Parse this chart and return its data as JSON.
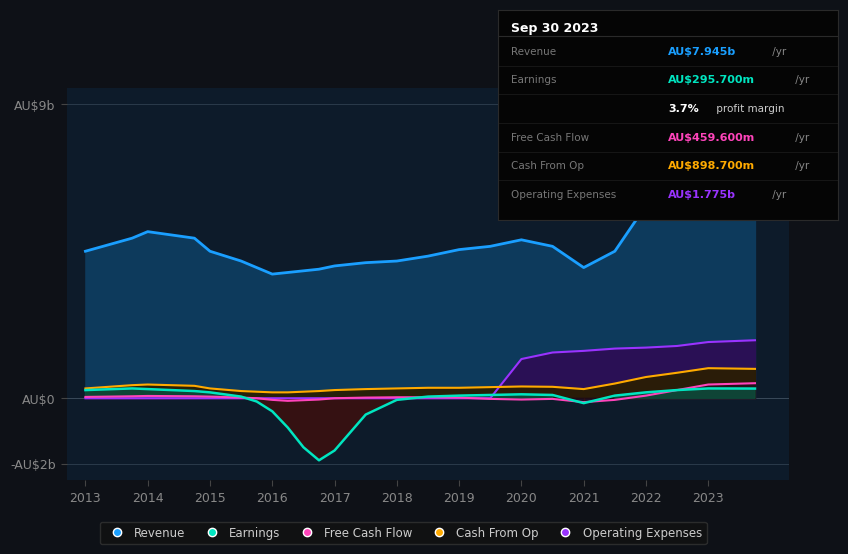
{
  "bg_color": "#0e1117",
  "plot_bg_color": "#0d1b2a",
  "years": [
    2013,
    2013.75,
    2014,
    2014.75,
    2015,
    2015.5,
    2015.75,
    2016,
    2016.25,
    2016.5,
    2016.75,
    2017,
    2017.5,
    2018,
    2018.5,
    2019,
    2019.5,
    2020,
    2020.5,
    2021,
    2021.5,
    2022,
    2022.5,
    2023,
    2023.75
  ],
  "revenue": [
    4.5,
    4.9,
    5.1,
    4.9,
    4.5,
    4.2,
    4.0,
    3.8,
    3.85,
    3.9,
    3.95,
    4.05,
    4.15,
    4.2,
    4.35,
    4.55,
    4.65,
    4.85,
    4.65,
    4.0,
    4.5,
    5.9,
    7.1,
    8.5,
    7.95
  ],
  "earnings": [
    0.25,
    0.3,
    0.28,
    0.22,
    0.18,
    0.05,
    -0.1,
    -0.4,
    -0.9,
    -1.5,
    -1.9,
    -1.6,
    -0.5,
    -0.05,
    0.05,
    0.08,
    0.1,
    0.12,
    0.1,
    -0.15,
    0.08,
    0.18,
    0.25,
    0.3,
    0.296
  ],
  "free_cash_flow": [
    0.04,
    0.06,
    0.07,
    0.06,
    0.05,
    0.02,
    0.0,
    -0.05,
    -0.08,
    -0.06,
    -0.04,
    0.0,
    0.02,
    0.03,
    0.03,
    0.02,
    -0.02,
    -0.04,
    -0.02,
    -0.12,
    -0.05,
    0.08,
    0.25,
    0.42,
    0.46
  ],
  "cash_from_op": [
    0.3,
    0.4,
    0.42,
    0.38,
    0.3,
    0.22,
    0.2,
    0.18,
    0.18,
    0.2,
    0.22,
    0.25,
    0.28,
    0.3,
    0.32,
    0.32,
    0.34,
    0.36,
    0.35,
    0.28,
    0.45,
    0.65,
    0.78,
    0.92,
    0.899
  ],
  "op_expenses": [
    0.0,
    0.0,
    0.0,
    0.0,
    0.0,
    0.0,
    0.0,
    0.0,
    0.0,
    0.0,
    0.0,
    0.0,
    0.0,
    0.0,
    0.0,
    0.0,
    0.0,
    1.2,
    1.4,
    1.45,
    1.52,
    1.55,
    1.6,
    1.72,
    1.775
  ],
  "revenue_color": "#1a9fff",
  "revenue_fill": "#0d3a5c",
  "earnings_color": "#00e5c0",
  "earnings_fill_pos": "#0d4a3a",
  "earnings_fill_neg": "#3a1010",
  "fcf_color": "#ff44bb",
  "cashop_color": "#ffaa00",
  "opex_color": "#9933ff",
  "opex_fill": "#2a1055",
  "ylim": [
    -2.5,
    9.5
  ],
  "ytick_vals": [
    -2,
    0,
    9
  ],
  "ytick_labels": [
    "-AU$2b",
    "AU$0",
    "AU$9b"
  ],
  "xtick_vals": [
    2013,
    2014,
    2015,
    2016,
    2017,
    2018,
    2019,
    2020,
    2021,
    2022,
    2023
  ],
  "legend_items": [
    {
      "label": "Revenue",
      "color": "#1a9fff"
    },
    {
      "label": "Earnings",
      "color": "#00e5c0"
    },
    {
      "label": "Free Cash Flow",
      "color": "#ff44bb"
    },
    {
      "label": "Cash From Op",
      "color": "#ffaa00"
    },
    {
      "label": "Operating Expenses",
      "color": "#9933ff"
    }
  ],
  "infobox": {
    "date": "Sep 30 2023",
    "rows": [
      {
        "label": "Revenue",
        "value": "AU$7.945b",
        "suffix": " /yr",
        "value_color": "#1a9fff"
      },
      {
        "label": "Earnings",
        "value": "AU$295.700m",
        "suffix": " /yr",
        "value_color": "#00e5c0"
      },
      {
        "label": "",
        "value": "3.7%",
        "suffix": " profit margin",
        "value_color": "#ffffff",
        "suffix_color": "#cccccc"
      },
      {
        "label": "Free Cash Flow",
        "value": "AU$459.600m",
        "suffix": " /yr",
        "value_color": "#ff44bb"
      },
      {
        "label": "Cash From Op",
        "value": "AU$898.700m",
        "suffix": " /yr",
        "value_color": "#ffaa00"
      },
      {
        "label": "Operating Expenses",
        "value": "AU$1.775b",
        "suffix": " /yr",
        "value_color": "#9933ff"
      }
    ]
  }
}
